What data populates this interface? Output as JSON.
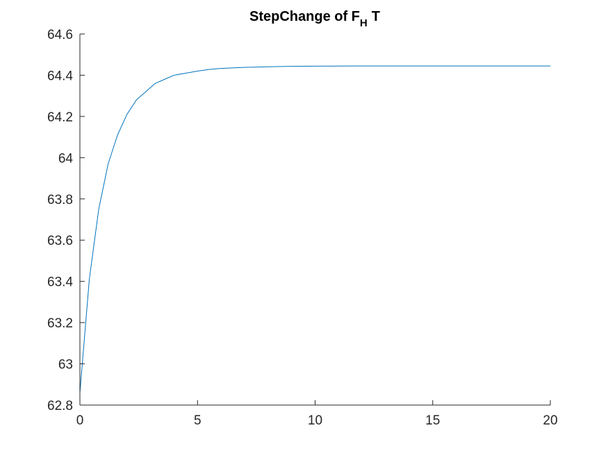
{
  "chart_data": {
    "type": "line",
    "title": "StepChange of F",
    "title_subscript": "H",
    "title_suffix": "T",
    "xlabel": "",
    "ylabel": "",
    "xlim": [
      0,
      20
    ],
    "ylim": [
      62.8,
      64.6
    ],
    "xticks": [
      0,
      5,
      10,
      15,
      20
    ],
    "xtick_labels": [
      "0",
      "5",
      "10",
      "15",
      "20"
    ],
    "yticks": [
      62.8,
      63,
      63.2,
      63.4,
      63.6,
      63.8,
      64,
      64.2,
      64.4,
      64.6
    ],
    "ytick_labels": [
      "62.8",
      "63",
      "63.2",
      "63.4",
      "63.6",
      "63.8",
      "64",
      "64.2",
      "64.4",
      "64.6"
    ],
    "grid": false,
    "legend": "none",
    "colors": {
      "line": "#0072BD",
      "axis": "#262626"
    },
    "series": [
      {
        "x": [
          0,
          0.4,
          0.8,
          1.2,
          1.6,
          2.0,
          2.4,
          2.8,
          3.2,
          3.6,
          4.0,
          4.5,
          5.0,
          5.5,
          6.0,
          7.0,
          8.0,
          9.0,
          10.0,
          12.0,
          14.0,
          16.0,
          18.0,
          20.0
        ],
        "y": [
          62.86,
          63.41,
          63.75,
          63.97,
          64.11,
          64.21,
          64.28,
          64.32,
          64.36,
          64.38,
          64.4,
          64.41,
          64.42,
          64.428,
          64.433,
          64.438,
          64.441,
          64.443,
          64.444,
          64.445,
          64.445,
          64.445,
          64.445,
          64.445
        ]
      }
    ]
  }
}
